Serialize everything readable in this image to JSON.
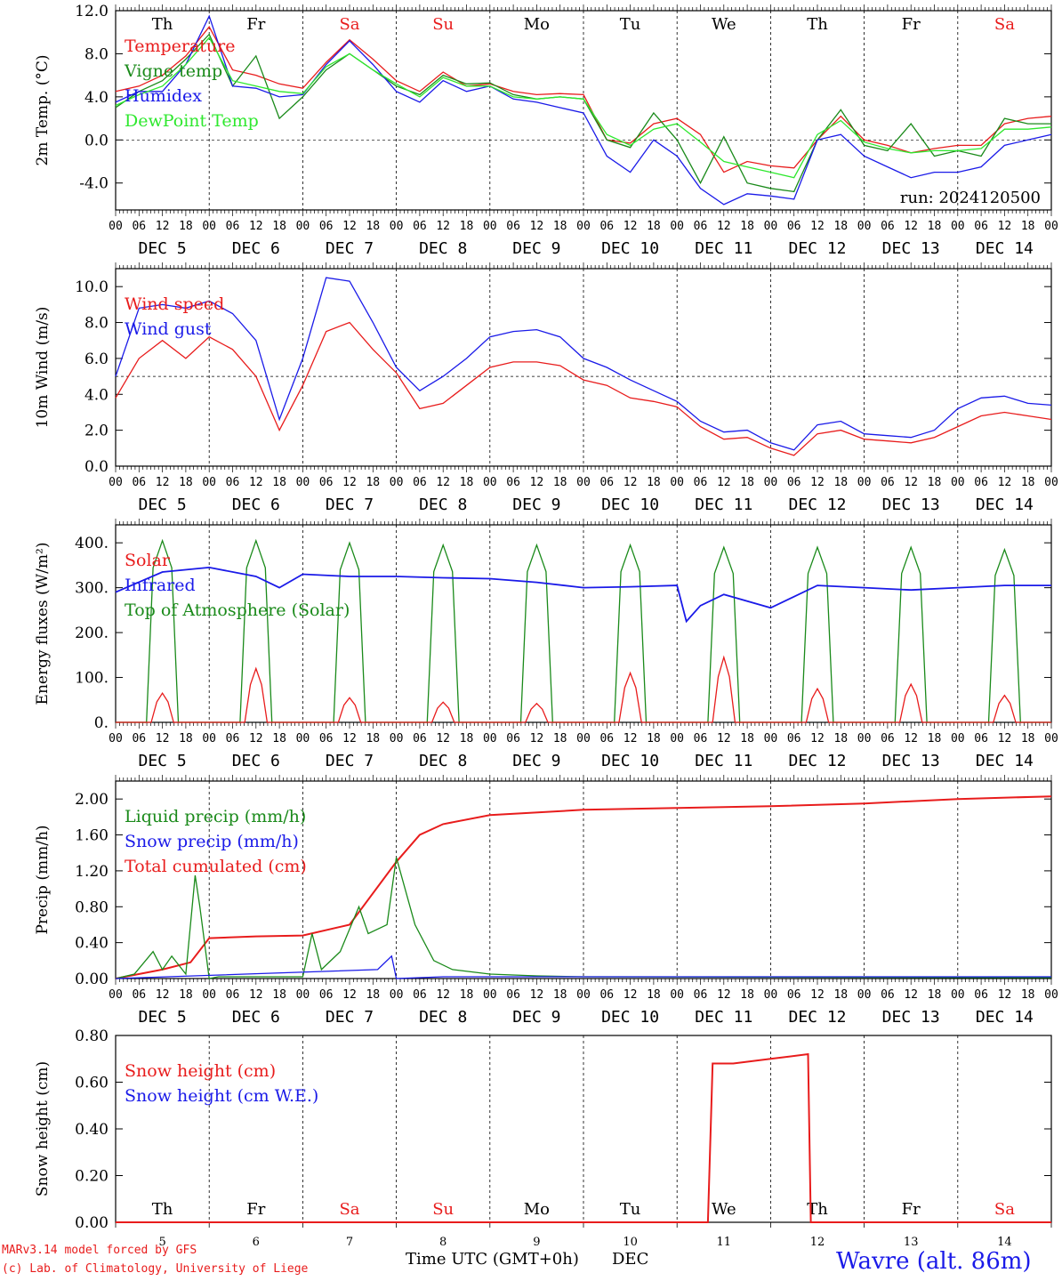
{
  "days": [
    "Th",
    "Fr",
    "Sa",
    "Su",
    "Mo",
    "Tu",
    "We",
    "Th",
    "Fr",
    "Sa"
  ],
  "weekend_flags": [
    false,
    false,
    true,
    true,
    false,
    false,
    false,
    false,
    false,
    true
  ],
  "date_labels": [
    "DEC 5",
    "DEC 6",
    "DEC 7",
    "DEC 8",
    "DEC 9",
    "DEC 10",
    "DEC 11",
    "DEC 12",
    "DEC 13",
    "DEC 14"
  ],
  "date_numbers": [
    "5",
    "6",
    "7",
    "8",
    "9",
    "10",
    "11",
    "12",
    "13",
    "14"
  ],
  "hour_ticks": [
    "00",
    "06",
    "12",
    "18"
  ],
  "last_hour_tick": "00",
  "colors": {
    "red": "#e81c1c",
    "green": "#1a8a1a",
    "blue": "#1a1ae8",
    "lightgreen": "#2ee82e",
    "weekend": "#e81c1c",
    "weekday": "#000000"
  },
  "footer": {
    "model": "MARv3.14 model forced by GFS",
    "credit": "(c) Lab. of Climatology, University of Liege",
    "xaxis_label": "Time UTC (GMT+0h)",
    "xaxis_month": "DEC",
    "station": "Wavre (alt. 86m)"
  },
  "chart_data": [
    {
      "type": "line",
      "ylabel": "2m Temp. (°C)",
      "ylim": [
        -6.5,
        12.0
      ],
      "yticks": [
        "12.0",
        "8.0",
        "4.0",
        "0.0",
        "-4.0"
      ],
      "ytick_values": [
        12,
        8,
        4,
        0,
        -4
      ],
      "ref_line": 0,
      "run_label": "run: 2024120500",
      "legend": [
        {
          "name": "Temperature",
          "color": "red"
        },
        {
          "name": "Vigne temp",
          "color": "green"
        },
        {
          "name": "Humidex",
          "color": "blue"
        },
        {
          "name": "DewPoint Temp",
          "color": "lightgreen"
        }
      ],
      "series": [
        {
          "name": "Temperature",
          "color": "red",
          "x": [
            0,
            0.25,
            0.5,
            0.75,
            1,
            1.25,
            1.5,
            1.75,
            2,
            2.25,
            2.5,
            2.75,
            3,
            3.25,
            3.5,
            3.75,
            4,
            4.25,
            4.5,
            4.75,
            5,
            5.25,
            5.5,
            5.75,
            6,
            6.25,
            6.5,
            6.75,
            7,
            7.25,
            7.5,
            7.75,
            8,
            8.25,
            8.5,
            8.75,
            9,
            9.25,
            9.5,
            9.75,
            10
          ],
          "values": [
            4.5,
            5.0,
            6.0,
            7.8,
            10.5,
            6.5,
            6.0,
            5.2,
            4.8,
            7.2,
            9.3,
            7.5,
            5.5,
            4.5,
            6.3,
            5.0,
            5.2,
            4.5,
            4.2,
            4.3,
            4.2,
            0,
            -0.3,
            1.5,
            2.0,
            0.5,
            -3.0,
            -2.0,
            -2.4,
            -2.6,
            0,
            2.2,
            0.0,
            -0.5,
            -1.2,
            -0.8,
            -0.5,
            -0.5,
            1.5,
            2.0,
            2.2
          ]
        },
        {
          "name": "Vigne temp",
          "color": "green",
          "x": [
            0,
            0.25,
            0.5,
            0.75,
            1,
            1.25,
            1.5,
            1.75,
            2,
            2.25,
            2.5,
            2.75,
            3,
            3.25,
            3.5,
            3.75,
            4,
            4.25,
            4.5,
            4.75,
            5,
            5.25,
            5.5,
            5.75,
            6,
            6.25,
            6.5,
            6.75,
            7,
            7.25,
            7.5,
            7.75,
            8,
            8.25,
            8.5,
            8.75,
            9,
            9.25,
            9.5,
            9.75,
            10
          ],
          "values": [
            3.0,
            4.5,
            5.5,
            7.5,
            9.8,
            5.0,
            7.8,
            2.0,
            4.0,
            6.5,
            8.0,
            6.5,
            5.0,
            4.2,
            6.0,
            5.2,
            5.3,
            4.2,
            3.8,
            4.0,
            3.8,
            0,
            -0.7,
            2.5,
            0.0,
            -4.0,
            0.3,
            -4.0,
            -4.5,
            -4.8,
            0,
            2.8,
            -0.5,
            -1.0,
            1.5,
            -1.5,
            -1.0,
            -1.5,
            2.0,
            1.5,
            1.5
          ]
        },
        {
          "name": "Humidex",
          "color": "blue",
          "x": [
            0,
            0.25,
            0.5,
            0.75,
            1,
            1.25,
            1.5,
            1.75,
            2,
            2.25,
            2.5,
            2.75,
            3,
            3.25,
            3.5,
            3.75,
            4,
            4.25,
            4.5,
            4.75,
            5,
            5.25,
            5.5,
            5.75,
            6,
            6.25,
            6.5,
            6.75,
            7,
            7.25,
            7.5,
            7.75,
            8,
            8.25,
            8.5,
            8.75,
            9,
            9.25,
            9.5,
            9.75,
            10
          ],
          "values": [
            3.5,
            4.5,
            4.5,
            7.0,
            11.5,
            5.0,
            4.8,
            4.0,
            4.2,
            7.0,
            9.2,
            7.0,
            4.5,
            3.5,
            5.5,
            4.5,
            5.0,
            3.8,
            3.5,
            3.0,
            2.5,
            -1.5,
            -3.0,
            0.0,
            -1.5,
            -4.5,
            -6.0,
            -5.0,
            -5.2,
            -5.5,
            0,
            0.5,
            -1.5,
            -2.5,
            -3.5,
            -3.0,
            -3.0,
            -2.5,
            -0.5,
            0.0,
            0.5
          ]
        },
        {
          "name": "DewPoint Temp",
          "color": "lightgreen",
          "x": [
            0,
            0.25,
            0.5,
            0.75,
            1,
            1.25,
            1.5,
            1.75,
            2,
            2.25,
            2.5,
            2.75,
            3,
            3.25,
            3.5,
            3.75,
            4,
            4.25,
            4.5,
            4.75,
            5,
            5.25,
            5.5,
            5.75,
            6,
            6.25,
            6.5,
            6.75,
            7,
            7.25,
            7.5,
            7.75,
            8,
            8.25,
            8.5,
            8.75,
            9,
            9.25,
            9.5,
            9.75,
            10
          ],
          "values": [
            3.2,
            4.2,
            5.0,
            7.0,
            9.5,
            5.5,
            5.0,
            4.5,
            4.3,
            6.8,
            8.0,
            6.5,
            5.2,
            4.0,
            5.8,
            5.0,
            5.0,
            4.0,
            3.8,
            4.0,
            3.8,
            0.5,
            -0.5,
            1.0,
            1.5,
            -0.2,
            -2.0,
            -2.5,
            -3.0,
            -3.5,
            0.5,
            1.8,
            -0.2,
            -0.8,
            -1.2,
            -1.0,
            -1.0,
            -0.8,
            1.0,
            1.0,
            1.2
          ]
        }
      ]
    },
    {
      "type": "line",
      "ylabel": "10m Wind (m/s)",
      "ylim": [
        0,
        11
      ],
      "yticks": [
        "10.0",
        "8.0",
        "6.0",
        "4.0",
        "2.0",
        "0.0"
      ],
      "ytick_values": [
        10,
        8,
        6,
        4,
        2,
        0
      ],
      "ref_line": 5,
      "legend": [
        {
          "name": "Wind speed",
          "color": "red"
        },
        {
          "name": "Wind gust",
          "color": "blue"
        }
      ],
      "series": [
        {
          "name": "Wind speed",
          "color": "red",
          "x": [
            0,
            0.25,
            0.5,
            0.75,
            1,
            1.25,
            1.5,
            1.75,
            2,
            2.25,
            2.5,
            2.75,
            3,
            3.25,
            3.5,
            3.75,
            4,
            4.25,
            4.5,
            4.75,
            5,
            5.25,
            5.5,
            5.75,
            6,
            6.25,
            6.5,
            6.75,
            7,
            7.25,
            7.5,
            7.75,
            8,
            8.25,
            8.5,
            8.75,
            9,
            9.25,
            9.5,
            9.75,
            10
          ],
          "values": [
            3.8,
            6.0,
            7.0,
            6.0,
            7.2,
            6.5,
            5.0,
            2.0,
            4.5,
            7.5,
            8.0,
            6.5,
            5.2,
            3.2,
            3.5,
            4.5,
            5.5,
            5.8,
            5.8,
            5.6,
            4.8,
            4.5,
            3.8,
            3.6,
            3.3,
            2.2,
            1.5,
            1.6,
            1.0,
            0.6,
            1.8,
            2.0,
            1.5,
            1.4,
            1.3,
            1.6,
            2.2,
            2.8,
            3.0,
            2.8,
            2.6
          ]
        },
        {
          "name": "Wind gust",
          "color": "blue",
          "x": [
            0,
            0.25,
            0.5,
            0.75,
            1,
            1.25,
            1.5,
            1.75,
            2,
            2.25,
            2.5,
            2.75,
            3,
            3.25,
            3.5,
            3.75,
            4,
            4.25,
            4.5,
            4.75,
            5,
            5.25,
            5.5,
            5.75,
            6,
            6.25,
            6.5,
            6.75,
            7,
            7.25,
            7.5,
            7.75,
            8,
            8.25,
            8.5,
            8.75,
            9,
            9.25,
            9.5,
            9.75,
            10
          ],
          "values": [
            5.0,
            8.8,
            9.0,
            8.8,
            9.2,
            8.5,
            7.0,
            2.6,
            6.0,
            10.5,
            10.3,
            8.0,
            5.5,
            4.2,
            5.0,
            6.0,
            7.2,
            7.5,
            7.6,
            7.2,
            6.0,
            5.5,
            4.8,
            4.2,
            3.6,
            2.5,
            1.9,
            2.0,
            1.3,
            0.9,
            2.3,
            2.5,
            1.8,
            1.7,
            1.6,
            2.0,
            3.2,
            3.8,
            3.9,
            3.5,
            3.4
          ]
        }
      ]
    },
    {
      "type": "line",
      "ylabel": "Energy fluxes (W/m²)",
      "ylim": [
        0,
        440
      ],
      "yticks": [
        "400.",
        "300.",
        "200.",
        "100.",
        "0."
      ],
      "ytick_values": [
        400,
        300,
        200,
        100,
        0
      ],
      "legend": [
        {
          "name": "Solar",
          "color": "red"
        },
        {
          "name": "Infrared",
          "color": "blue"
        },
        {
          "name": "Top of Atmosphere (Solar)",
          "color": "green"
        }
      ],
      "solar_peaks": [
        65,
        120,
        55,
        45,
        42,
        110,
        145,
        75,
        85,
        60
      ],
      "toa_peaks": [
        405,
        405,
        400,
        395,
        395,
        395,
        390,
        390,
        390,
        385
      ],
      "infrared": {
        "x": [
          0,
          0.5,
          1,
          1.5,
          1.75,
          2,
          2.5,
          3,
          3.5,
          4,
          4.5,
          5,
          5.5,
          6,
          6.1,
          6.25,
          6.5,
          7,
          7.5,
          8,
          8.5,
          9,
          9.5,
          10
        ],
        "values": [
          290,
          335,
          345,
          325,
          300,
          330,
          325,
          325,
          322,
          320,
          312,
          300,
          302,
          305,
          225,
          260,
          285,
          255,
          305,
          300,
          295,
          300,
          305,
          305
        ]
      }
    },
    {
      "type": "line",
      "ylabel": "Precip (mm/h)",
      "ylim": [
        0,
        2.2
      ],
      "yticks": [
        "2.00",
        "1.60",
        "1.20",
        "0.80",
        "0.40",
        "0.00"
      ],
      "ytick_values": [
        2.0,
        1.6,
        1.2,
        0.8,
        0.4,
        0
      ],
      "legend": [
        {
          "name": "Liquid precip (mm/h)",
          "color": "green"
        },
        {
          "name": "Snow precip (mm/h)",
          "color": "blue"
        },
        {
          "name": "Total cumulated (cm)",
          "color": "red"
        }
      ],
      "series": [
        {
          "name": "Total cumulated (cm)",
          "color": "red",
          "x": [
            0,
            0.5,
            0.8,
            1,
            1.5,
            2,
            2.5,
            3,
            3.25,
            3.5,
            4,
            5,
            6,
            7,
            8,
            9,
            10
          ],
          "values": [
            0,
            0.1,
            0.18,
            0.45,
            0.47,
            0.48,
            0.6,
            1.3,
            1.6,
            1.72,
            1.82,
            1.88,
            1.9,
            1.92,
            1.95,
            2.0,
            2.03
          ]
        },
        {
          "name": "Liquid precip (mm/h)",
          "color": "green",
          "x": [
            0,
            0.2,
            0.4,
            0.5,
            0.6,
            0.75,
            0.85,
            0.9,
            1.0,
            1.1,
            2.0,
            2.1,
            2.2,
            2.4,
            2.6,
            2.7,
            2.9,
            3.0,
            3.2,
            3.4,
            3.6,
            4.0,
            4.5,
            5,
            10
          ],
          "values": [
            0,
            0.05,
            0.3,
            0.1,
            0.25,
            0.05,
            1.15,
            0.8,
            0,
            0.02,
            0.02,
            0.5,
            0.1,
            0.3,
            0.8,
            0.5,
            0.6,
            1.35,
            0.6,
            0.2,
            0.1,
            0.05,
            0.03,
            0.02,
            0.01
          ]
        },
        {
          "name": "Snow precip (mm/h)",
          "color": "blue",
          "x": [
            0,
            2.8,
            2.95,
            3.0,
            3.5,
            10
          ],
          "values": [
            0,
            0.1,
            0.25,
            0,
            0.02,
            0.02
          ]
        }
      ]
    },
    {
      "type": "line",
      "ylabel": "Snow height (cm)",
      "ylim": [
        0,
        0.8
      ],
      "yticks": [
        "0.80",
        "0.60",
        "0.40",
        "0.20",
        "0.00"
      ],
      "ytick_values": [
        0.8,
        0.6,
        0.4,
        0.2,
        0
      ],
      "legend": [
        {
          "name": "Snow height (cm)",
          "color": "red"
        },
        {
          "name": "Snow height (cm W.E.)",
          "color": "blue"
        }
      ],
      "series": [
        {
          "name": "Snow height (cm)",
          "color": "red",
          "x": [
            0,
            6.33,
            6.38,
            6.6,
            7.0,
            7.4,
            7.43,
            10
          ],
          "values": [
            0,
            0,
            0.68,
            0.68,
            0.7,
            0.72,
            0,
            0
          ]
        }
      ]
    }
  ]
}
